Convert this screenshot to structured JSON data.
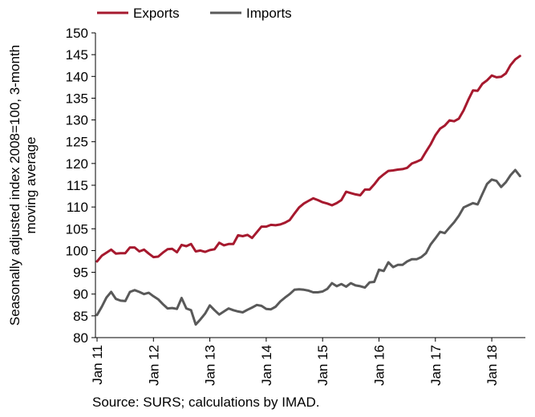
{
  "chart_data": {
    "type": "line",
    "title": "",
    "ylabel_lines": [
      "Seasonally adjusted index 2008=100, 3-month",
      "moving average"
    ],
    "xlabel": "",
    "ylim": [
      80,
      150
    ],
    "yticks": [
      80,
      85,
      90,
      95,
      100,
      105,
      110,
      115,
      120,
      125,
      130,
      135,
      140,
      145,
      150
    ],
    "xticks": [
      "Jan 11",
      "Jan 12",
      "Jan 13",
      "Jan 14",
      "Jan 15",
      "Jan 16",
      "Jan 17",
      "Jan 18"
    ],
    "x_start": "Jan 11",
    "x_frequency": "monthly",
    "grid": false,
    "legend_position": "top-left",
    "series": [
      {
        "name": "Exports",
        "color": "#a6192e",
        "values": [
          97.5,
          98.8,
          99.5,
          100.2,
          99.3,
          99.4,
          99.4,
          100.7,
          100.7,
          99.8,
          100.2,
          99.3,
          98.5,
          98.6,
          99.5,
          100.3,
          100.4,
          99.6,
          101.3,
          101.0,
          101.5,
          99.8,
          100.0,
          99.7,
          100.1,
          100.3,
          101.8,
          101.2,
          101.5,
          101.5,
          103.5,
          103.3,
          103.6,
          102.9,
          104.2,
          105.5,
          105.5,
          105.9,
          105.8,
          106.0,
          106.4,
          107.0,
          108.5,
          109.9,
          110.8,
          111.4,
          112.0,
          111.6,
          111.1,
          110.8,
          110.4,
          110.9,
          111.6,
          113.5,
          113.2,
          112.9,
          112.7,
          114.0,
          114.0,
          115.2,
          116.6,
          117.5,
          118.3,
          118.4,
          118.6,
          118.7,
          119.0,
          120.0,
          120.4,
          120.9,
          122.7,
          124.4,
          126.5,
          128.0,
          128.7,
          129.9,
          129.7,
          130.3,
          132.2,
          134.6,
          136.8,
          136.7,
          138.3,
          139.1,
          140.2,
          139.8,
          139.9,
          140.7,
          142.6,
          143.9,
          144.7
        ]
      },
      {
        "name": "Imports",
        "color": "#595959",
        "values": [
          85.2,
          87.1,
          89.2,
          90.5,
          88.9,
          88.5,
          88.4,
          90.5,
          90.9,
          90.5,
          90.0,
          90.3,
          89.5,
          88.8,
          87.7,
          86.7,
          86.8,
          86.6,
          89.1,
          86.7,
          86.3,
          83.0,
          84.2,
          85.5,
          87.4,
          86.3,
          85.3,
          86.0,
          86.7,
          86.3,
          86.0,
          85.8,
          86.4,
          86.9,
          87.5,
          87.3,
          86.6,
          86.5,
          87.1,
          88.3,
          89.2,
          90.0,
          91.0,
          91.1,
          91.0,
          90.8,
          90.4,
          90.4,
          90.6,
          91.2,
          92.5,
          91.8,
          92.3,
          91.7,
          92.5,
          92.0,
          91.8,
          91.5,
          92.7,
          92.8,
          95.6,
          95.3,
          97.3,
          96.2,
          96.7,
          96.7,
          97.5,
          98.0,
          98.0,
          98.5,
          99.4,
          101.4,
          102.8,
          104.3,
          104.0,
          105.3,
          106.5,
          108.0,
          109.9,
          110.4,
          110.9,
          110.6,
          113.0,
          115.3,
          116.3,
          116.0,
          114.6,
          115.7,
          117.3,
          118.5,
          117.1
        ]
      }
    ]
  },
  "source_text": "Source: SURS; calculations by IMAD."
}
